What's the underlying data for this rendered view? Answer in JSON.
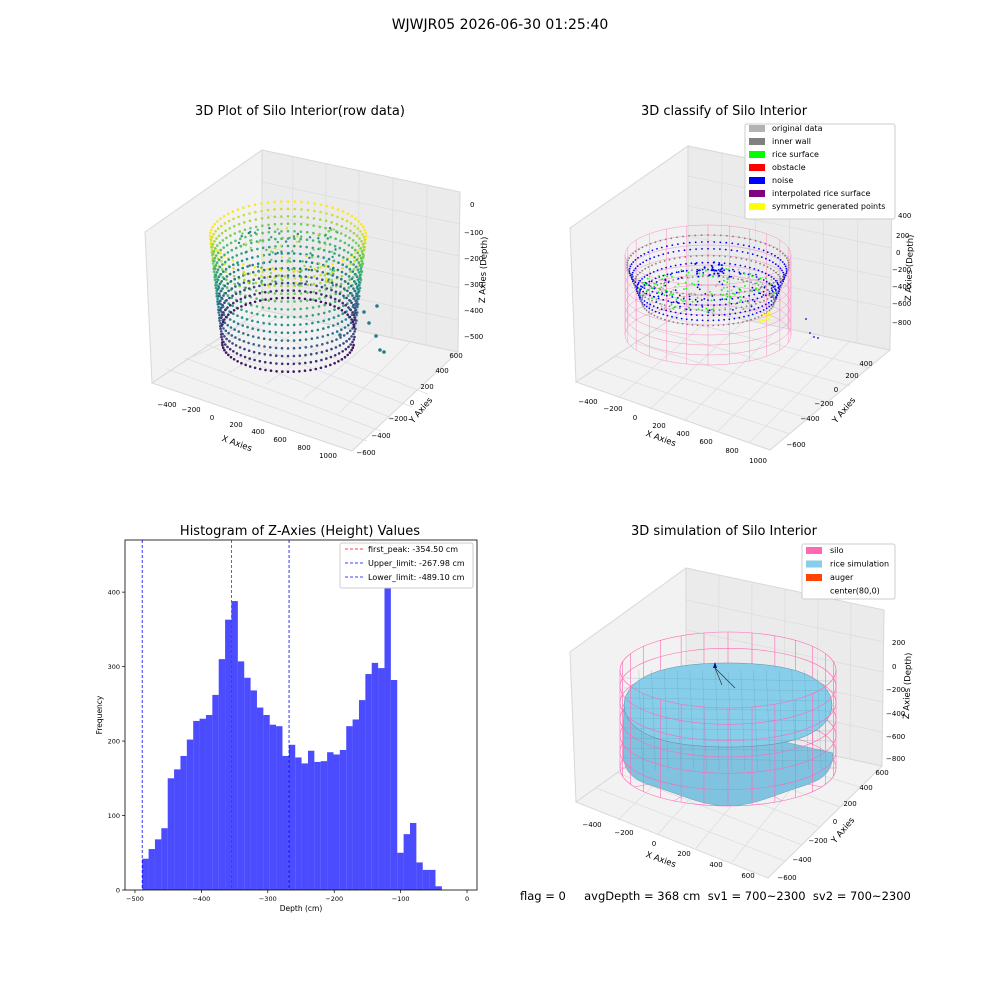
{
  "suptitle": "WJWJR05 2026-06-30 01:25:40",
  "panels": {
    "raw": {
      "title": "3D Plot of Silo Interior(row data)",
      "xlabel": "X Axies",
      "ylabel": "Y Axies",
      "zlabel": "Z Axies (Depth)",
      "xticks": [
        "−400",
        "−200",
        "0",
        "200",
        "400",
        "600",
        "800",
        "1000"
      ],
      "yticks": [
        "−600",
        "−400",
        "−200",
        "0",
        "200",
        "400",
        "600"
      ],
      "zticks": [
        "0",
        "−100",
        "−200",
        "−300",
        "−400",
        "−500"
      ],
      "colormap": "viridis"
    },
    "classify": {
      "title": "3D classify of Silo Interior",
      "xlabel": "X Axies",
      "ylabel": "Y Axies",
      "zlabel": "Z Axies (Depth)",
      "xticks": [
        "−400",
        "−200",
        "0",
        "200",
        "400",
        "600",
        "800",
        "1000"
      ],
      "yticks": [
        "−600",
        "−400",
        "−200",
        "0",
        "200",
        "400",
        "600"
      ],
      "zticks": [
        "400",
        "200",
        "0",
        "−200",
        "−400",
        "−600",
        "−800"
      ],
      "legend": [
        {
          "label": "original data",
          "color": "#b3b3b3"
        },
        {
          "label": "inner wall",
          "color": "#808080"
        },
        {
          "label": "rice surface",
          "color": "#00ff00"
        },
        {
          "label": "obstacle",
          "color": "#ff0000"
        },
        {
          "label": "noise",
          "color": "#0000ff"
        },
        {
          "label": "interpolated rice surface",
          "color": "#800080"
        },
        {
          "label": "symmetric generated points",
          "color": "#ffff00"
        }
      ]
    },
    "histogram": {
      "title": "Histogram of Z-Axies (Height) Values",
      "xlabel": "Depth (cm)",
      "ylabel": "Frequency",
      "legend": [
        {
          "label": "first_peak: -354.50 cm",
          "color": "#ff0000"
        },
        {
          "label": "Upper_limit: -267.98 cm",
          "color": "#0000ff"
        },
        {
          "label": "Lower_limit: -489.10 cm",
          "color": "#0000ff"
        }
      ]
    },
    "simulation": {
      "title": "3D simulation of Silo Interior",
      "xlabel": "X Axies",
      "ylabel": "Y Axies",
      "zlabel": "Z Axies (Depth)",
      "xticks": [
        "−400",
        "−200",
        "0",
        "200",
        "400",
        "600"
      ],
      "yticks": [
        "−600",
        "−400",
        "−200",
        "0",
        "200",
        "400",
        "600"
      ],
      "zticks": [
        "200",
        "0",
        "−200",
        "−400",
        "−600",
        "−800"
      ],
      "legend": [
        {
          "label": "silo",
          "color": "#ff69b4"
        },
        {
          "label": "rice simulation",
          "color": "#87ceeb"
        },
        {
          "label": "auger",
          "color": "#ff4500"
        },
        {
          "label": "center(80,0)",
          "color": ""
        }
      ]
    }
  },
  "footer": "flag = 0     avgDepth = 368 cm  sv1 = 700~2300  sv2 = 700~2300",
  "chart_data": {
    "type": "bar",
    "title": "Histogram of Z-Axies (Height) Values",
    "xlabel": "Depth (cm)",
    "ylabel": "Frequency",
    "xlim": [
      -515,
      15
    ],
    "ylim": [
      0,
      470
    ],
    "xticks": [
      -500,
      -400,
      -300,
      -200,
      -100,
      0
    ],
    "yticks": [
      0,
      100,
      200,
      300,
      400
    ],
    "bin_start": -489.1,
    "bin_width": 9.6,
    "values": [
      42,
      55,
      68,
      83,
      150,
      162,
      180,
      202,
      227,
      230,
      235,
      262,
      310,
      363,
      388,
      307,
      285,
      268,
      245,
      235,
      222,
      220,
      180,
      195,
      178,
      170,
      187,
      172,
      173,
      185,
      182,
      188,
      220,
      229,
      255,
      290,
      305,
      298,
      440,
      282,
      50,
      75,
      90,
      37,
      27,
      27,
      5
    ],
    "bar_color": "#0000ff",
    "vlines": [
      {
        "name": "first_peak",
        "x": -354.5,
        "color": "#ff0000"
      },
      {
        "name": "Upper_limit",
        "x": -267.98,
        "color": "#0000ff"
      },
      {
        "name": "Lower_limit",
        "x": -489.1,
        "color": "#0000ff"
      }
    ],
    "legend_position": "upper right"
  }
}
